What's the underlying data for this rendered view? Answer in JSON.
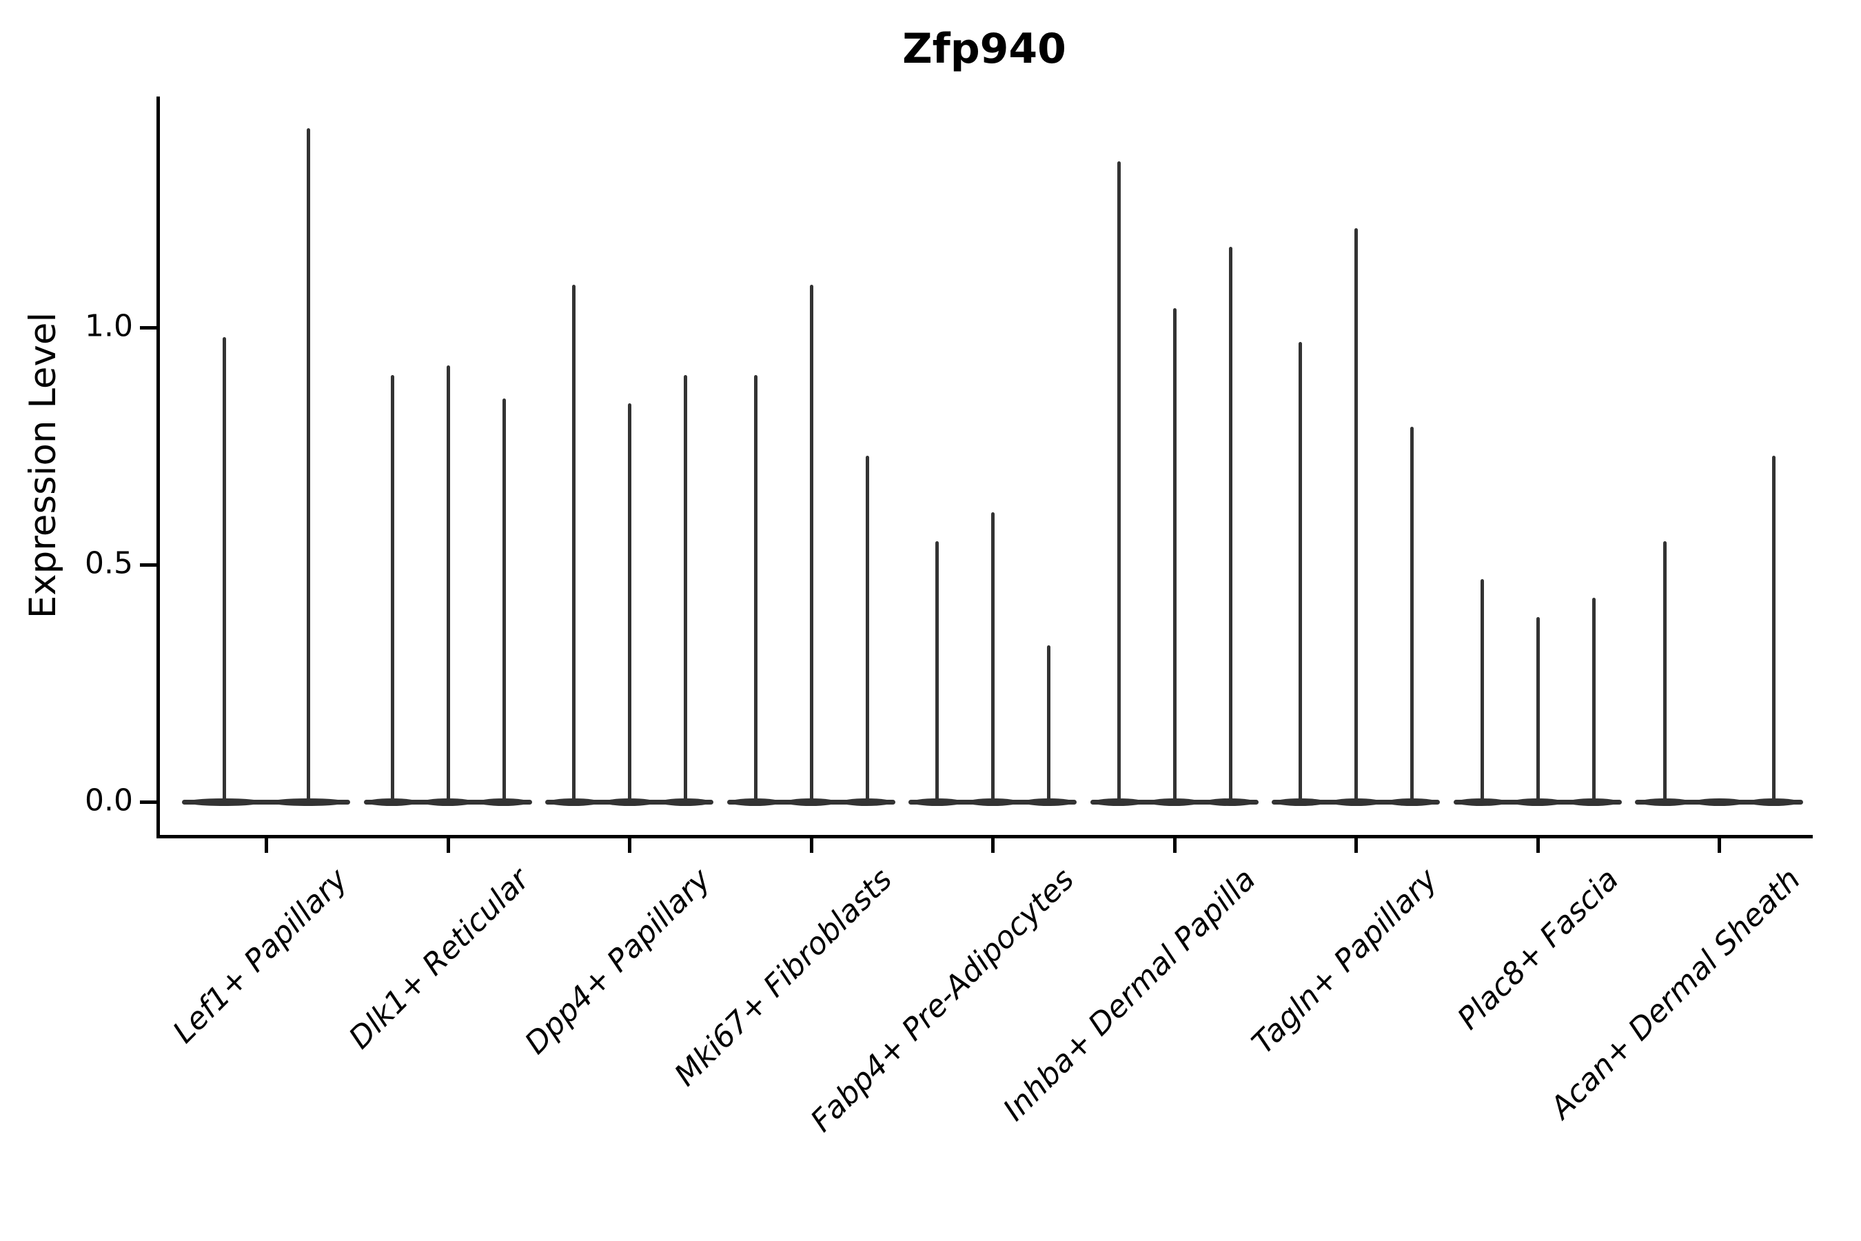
{
  "colors": {
    "background": "#ffffff",
    "ink": "#000000",
    "violin": "#333333"
  },
  "chart_data": {
    "type": "violin",
    "title": "Zfp940",
    "xlabel": "",
    "ylabel": "Expression Level",
    "grid": false,
    "legend": "none",
    "ylim": [
      -0.07,
      1.49
    ],
    "yticks": [
      {
        "label": "0.0",
        "value": 0.0
      },
      {
        "label": "0.5",
        "value": 0.5
      },
      {
        "label": "1.0",
        "value": 1.0
      }
    ],
    "tick_label_style": "italic, rotated 45deg, right-anchored",
    "categories": [
      {
        "label": "Lef1+ Papillary",
        "violins": [
          {
            "offset": -61,
            "peak": 0.98
          },
          {
            "offset": 61,
            "peak": 1.42
          }
        ]
      },
      {
        "label": "Dlk1+ Reticular",
        "violins": [
          {
            "offset": -81,
            "peak": 0.9
          },
          {
            "offset": 0,
            "peak": 0.92
          },
          {
            "offset": 81,
            "peak": 0.85
          }
        ]
      },
      {
        "label": "Dpp4+ Papillary",
        "violins": [
          {
            "offset": -81,
            "peak": 1.09
          },
          {
            "offset": 0,
            "peak": 0.84
          },
          {
            "offset": 81,
            "peak": 0.9
          }
        ]
      },
      {
        "label": "Mki67+ Fibroblasts",
        "violins": [
          {
            "offset": -81,
            "peak": 0.9
          },
          {
            "offset": 0,
            "peak": 1.09
          },
          {
            "offset": 81,
            "peak": 0.73
          }
        ]
      },
      {
        "label": "Fabp4+ Pre-Adipocytes",
        "violins": [
          {
            "offset": -81,
            "peak": 0.55
          },
          {
            "offset": 0,
            "peak": 0.61
          },
          {
            "offset": 81,
            "peak": 0.33
          }
        ]
      },
      {
        "label": "Inhba+ Dermal Papilla",
        "violins": [
          {
            "offset": -81,
            "peak": 1.35
          },
          {
            "offset": 0,
            "peak": 1.04
          },
          {
            "offset": 81,
            "peak": 1.17
          }
        ]
      },
      {
        "label": "Tagln+ Papillary",
        "violins": [
          {
            "offset": -81,
            "peak": 0.97
          },
          {
            "offset": 0,
            "peak": 1.21
          },
          {
            "offset": 81,
            "peak": 0.79
          }
        ]
      },
      {
        "label": "Plac8+ Fascia",
        "violins": [
          {
            "offset": -81,
            "peak": 0.47
          },
          {
            "offset": 0,
            "peak": 0.39
          },
          {
            "offset": 81,
            "peak": 0.43
          }
        ]
      },
      {
        "label": "Acan+ Dermal Sheath",
        "violins": [
          {
            "offset": -79,
            "peak": 0.55
          },
          {
            "offset": 0,
            "peak": 0.0
          },
          {
            "offset": 79,
            "peak": 0.73
          }
        ]
      }
    ]
  }
}
